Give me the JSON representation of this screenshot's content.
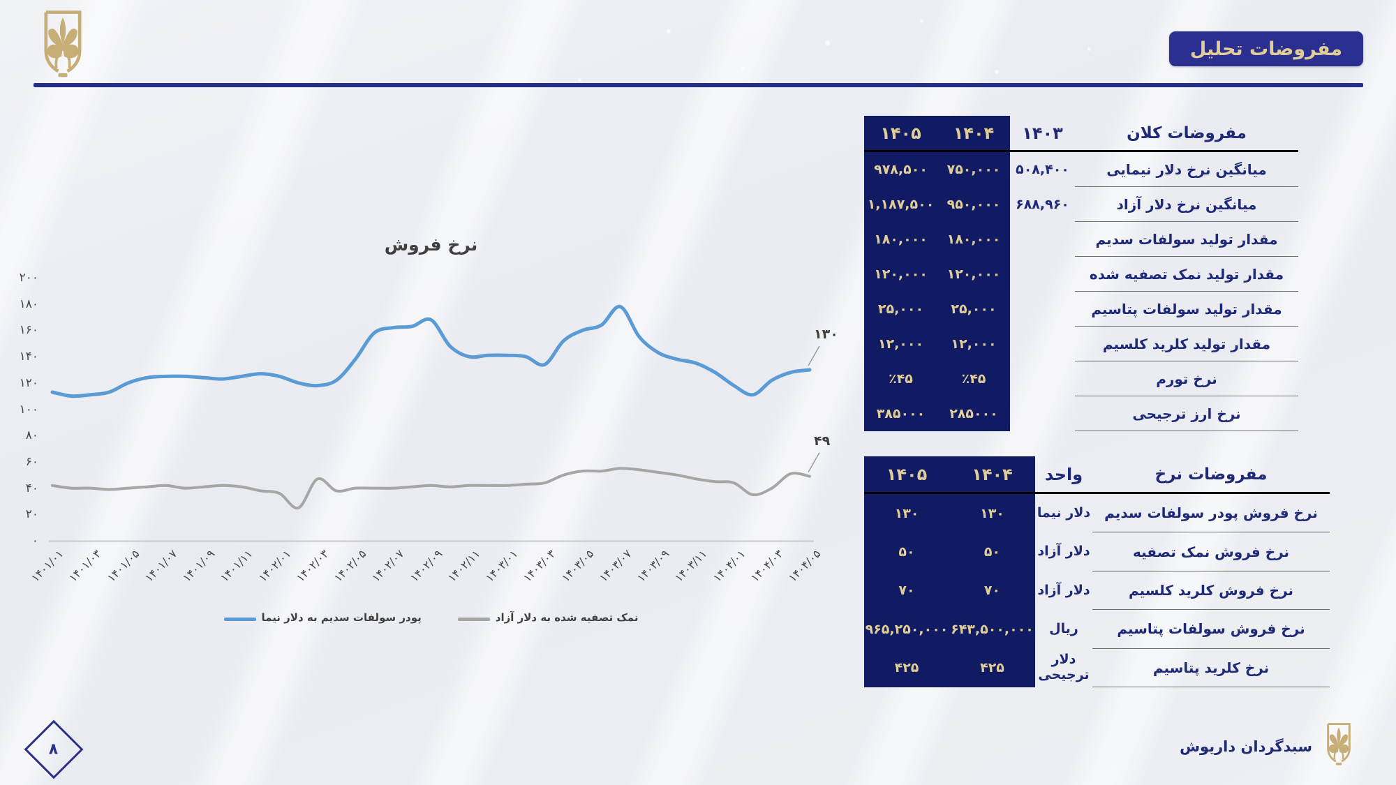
{
  "slide": {
    "title_badge": "مفروضات تحلیل",
    "page_number": "۸",
    "footer_brand": "سبدگردان داریوش"
  },
  "macro_table": {
    "title": "مفروضات کلان",
    "col_1403": "۱۴۰۳",
    "col_1404": "۱۴۰۴",
    "col_1405": "۱۴۰۵",
    "rows": [
      {
        "label": "میانگین نرخ دلار نیمایی",
        "y1403": "۵۰۸,۴۰۰",
        "y1404": "۷۵۰,۰۰۰",
        "y1405": "۹۷۸,۵۰۰"
      },
      {
        "label": "میانگین نرخ دلار آزاد",
        "y1403": "۶۸۸,۹۶۰",
        "y1404": "۹۵۰,۰۰۰",
        "y1405": "۱,۱۸۷,۵۰۰"
      },
      {
        "label": "مقدار تولید سولفات سدیم",
        "y1403": "",
        "y1404": "۱۸۰,۰۰۰",
        "y1405": "۱۸۰,۰۰۰"
      },
      {
        "label": "مقدار تولید نمک تصفیه شده",
        "y1403": "",
        "y1404": "۱۲۰,۰۰۰",
        "y1405": "۱۲۰,۰۰۰"
      },
      {
        "label": "مقدار تولید سولفات پتاسیم",
        "y1403": "",
        "y1404": "۲۵,۰۰۰",
        "y1405": "۲۵,۰۰۰"
      },
      {
        "label": "مقدار تولید کلرید کلسیم",
        "y1403": "",
        "y1404": "۱۲,۰۰۰",
        "y1405": "۱۲,۰۰۰"
      },
      {
        "label": "نرخ تورم",
        "y1403": "",
        "y1404": "٪۴۵",
        "y1405": "٪۴۵"
      },
      {
        "label": "نرخ ارز ترجیحی",
        "y1403": "",
        "y1404": "۲۸۵۰۰۰",
        "y1405": "۳۸۵۰۰۰"
      }
    ]
  },
  "rate_table": {
    "title": "مفروضات نرخ",
    "col_unit": "واحد",
    "col_1404": "۱۴۰۴",
    "col_1405": "۱۴۰۵",
    "rows": [
      {
        "label": "نرخ فروش پودر سولفات سدیم",
        "unit": "دلار نیما",
        "y1404": "۱۳۰",
        "y1405": "۱۳۰"
      },
      {
        "label": "نرخ فروش نمک تصفیه",
        "unit": "دلار آزاد",
        "y1404": "۵۰",
        "y1405": "۵۰"
      },
      {
        "label": "نرخ فروش کلرید کلسیم",
        "unit": "دلار آزاد",
        "y1404": "۷۰",
        "y1405": "۷۰"
      },
      {
        "label": "نرخ فروش سولفات پتاسیم",
        "unit": "ریال",
        "y1404": "۶۴۳,۵۰۰,۰۰۰",
        "y1405": "۹۶۵,۲۵۰,۰۰۰"
      },
      {
        "label": "نرخ کلرید پتاسیم",
        "unit": "دلار ترجیحی",
        "y1404": "۴۲۵",
        "y1405": "۴۲۵"
      }
    ]
  },
  "chart_data": {
    "type": "line",
    "title": "نرخ فروش",
    "ylim": [
      0,
      200
    ],
    "grid": false,
    "legend_position": "bottom",
    "points_per_series": 41,
    "y_tick_labels": [
      "۲۰۰",
      "۱۸۰",
      "۱۶۰",
      "۱۴۰",
      "۱۲۰",
      "۱۰۰",
      "۸۰",
      "۶۰",
      "۴۰",
      "۲۰",
      "۰"
    ],
    "y_tick_values": [
      200,
      180,
      160,
      140,
      120,
      100,
      80,
      60,
      40,
      20,
      0
    ],
    "x_tick_labels": [
      "۱۴۰۱/۰۱",
      "۱۴۰۱/۰۳",
      "۱۴۰۱/۰۵",
      "۱۴۰۱/۰۷",
      "۱۴۰۱/۰۹",
      "۱۴۰۱/۱۱",
      "۱۴۰۲/۰۱",
      "۱۴۰۲/۰۳",
      "۱۴۰۲/۰۵",
      "۱۴۰۲/۰۷",
      "۱۴۰۲/۰۹",
      "۱۴۰۲/۱۱",
      "۱۴۰۳/۰۱",
      "۱۴۰۳/۰۳",
      "۱۴۰۳/۰۵",
      "۱۴۰۳/۰۷",
      "۱۴۰۳/۰۹",
      "۱۴۰۳/۱۱",
      "۱۴۰۴/۰۱",
      "۱۴۰۴/۰۳",
      "۱۴۰۴/۰۵"
    ],
    "series": [
      {
        "name": "پودر سولفات سدیم به دلار نیما",
        "color": "#5b9bd5",
        "end_label": "۱۳۰",
        "values": [
          113,
          110,
          111,
          113,
          120,
          124,
          125,
          125,
          124,
          123,
          125,
          127,
          125,
          120,
          118,
          122,
          138,
          158,
          162,
          163,
          168,
          148,
          140,
          141,
          141,
          140,
          134,
          152,
          160,
          164,
          178,
          155,
          143,
          138,
          135,
          128,
          118,
          111,
          122,
          128,
          130
        ]
      },
      {
        "name": "نمک تصفیه شده به دلار آزاد",
        "color": "#a6a6a6",
        "end_label": "۴۹",
        "values": [
          42,
          40,
          40,
          39,
          40,
          41,
          42,
          40,
          41,
          42,
          41,
          38,
          36,
          25,
          47,
          38,
          40,
          40,
          40,
          41,
          42,
          41,
          42,
          42,
          42,
          43,
          44,
          50,
          53,
          53,
          55,
          54,
          52,
          50,
          47,
          45,
          44,
          35,
          40,
          51,
          49
        ]
      }
    ]
  }
}
